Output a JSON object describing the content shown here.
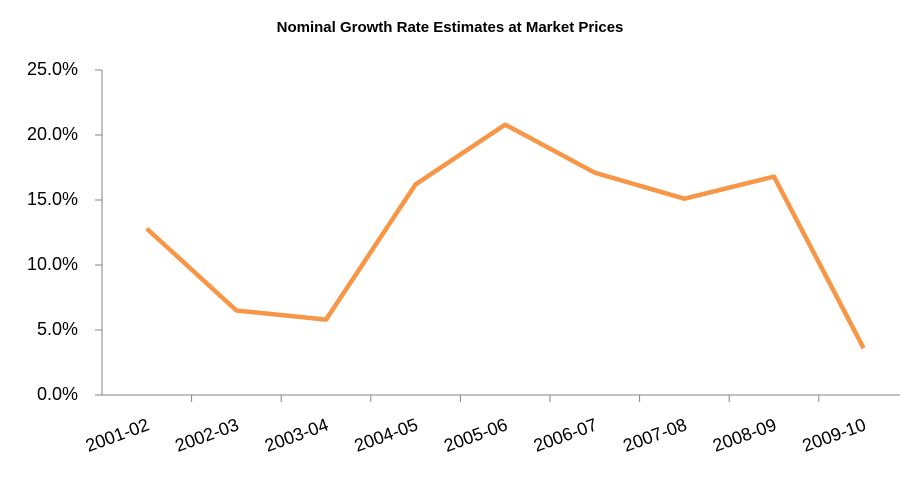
{
  "chart_data": {
    "type": "line",
    "title": "Nominal Growth Rate Estimates at Market Prices",
    "categories": [
      "2001-02",
      "2002-03",
      "2003-04",
      "2004-05",
      "2005-06",
      "2006-07",
      "2007-08",
      "2008-09",
      "2009-10"
    ],
    "values": [
      12.8,
      6.5,
      5.8,
      16.2,
      20.8,
      17.1,
      15.1,
      16.8,
      3.6
    ],
    "color": "#f79646",
    "ylim": [
      0,
      25
    ],
    "yticks": [
      {
        "value": 0,
        "label": "0.0%"
      },
      {
        "value": 5,
        "label": "5.0%"
      },
      {
        "value": 10,
        "label": "10.0%"
      },
      {
        "value": 15,
        "label": "15.0%"
      },
      {
        "value": 20,
        "label": "20.0%"
      },
      {
        "value": 25,
        "label": "25.0%"
      }
    ],
    "grid": false
  }
}
